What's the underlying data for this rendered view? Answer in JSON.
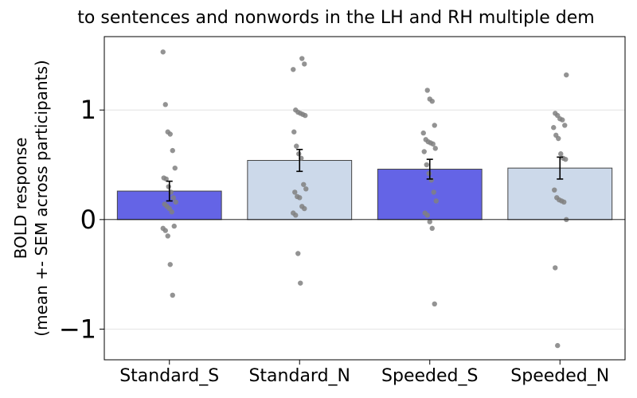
{
  "chart_data": {
    "type": "bar",
    "title": "to sentences and nonwords in the LH and RH multiple dem",
    "ylabel_line1": "BOLD response",
    "ylabel_line2": "(mean +- SEM across participants)",
    "xlabel": "",
    "categories": [
      "Standard_S",
      "Standard_N",
      "Speeded_S",
      "Speeded_N"
    ],
    "values": [
      0.26,
      0.54,
      0.46,
      0.47
    ],
    "sem": [
      0.09,
      0.1,
      0.09,
      0.1
    ],
    "bar_colors": [
      "#6464e6",
      "#ccd9ea",
      "#6464e6",
      "#ccd9ea"
    ],
    "point_color": "#808080",
    "ylim": [
      -1.28,
      1.67
    ],
    "yticks": [
      -1,
      0,
      1
    ],
    "ytick_labels": [
      "−1",
      "0",
      "1"
    ],
    "grid": "horizontal",
    "points": [
      [
        1.53,
        1.05,
        0.8,
        0.78,
        0.63,
        0.47,
        0.38,
        0.37,
        0.3,
        0.25,
        0.2,
        0.16,
        0.14,
        0.12,
        0.1,
        0.07,
        -0.06,
        -0.08,
        -0.1,
        -0.15,
        -0.41,
        -0.69
      ],
      [
        1.47,
        1.42,
        1.37,
        1.0,
        0.98,
        0.97,
        0.96,
        0.95,
        0.8,
        0.67,
        0.6,
        0.56,
        0.32,
        0.28,
        0.25,
        0.21,
        0.2,
        0.12,
        0.1,
        0.06,
        0.04,
        -0.31,
        -0.58
      ],
      [
        1.18,
        1.1,
        1.08,
        0.86,
        0.79,
        0.73,
        0.71,
        0.7,
        0.69,
        0.65,
        0.62,
        0.5,
        0.42,
        0.36,
        0.25,
        0.17,
        0.06,
        0.04,
        -0.02,
        -0.08,
        -0.77
      ],
      [
        1.32,
        0.97,
        0.95,
        0.92,
        0.91,
        0.86,
        0.84,
        0.77,
        0.74,
        0.6,
        0.56,
        0.55,
        0.27,
        0.2,
        0.18,
        0.17,
        0.16,
        0.0,
        -0.44,
        -1.15
      ]
    ]
  }
}
